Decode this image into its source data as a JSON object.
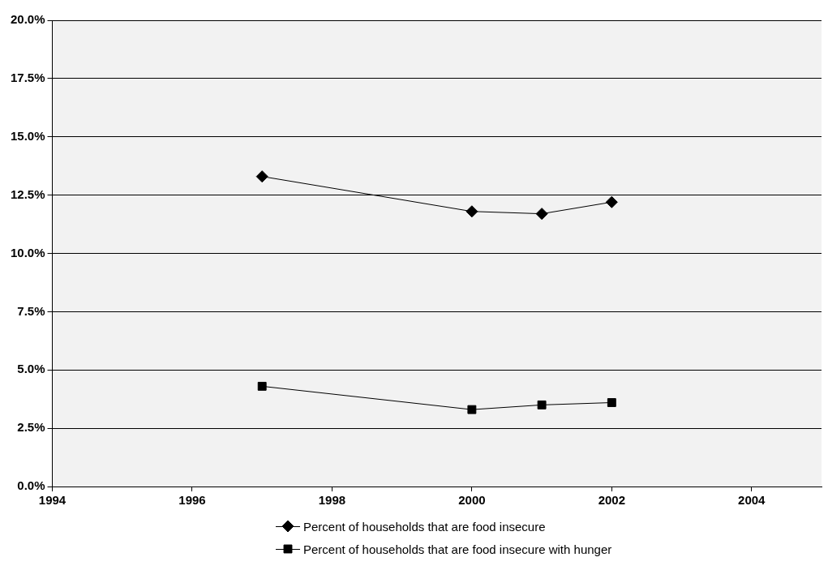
{
  "chart_data": {
    "type": "line",
    "x": [
      1997,
      2000,
      2001,
      2002
    ],
    "xlim": [
      1994,
      2005
    ],
    "xticks": [
      1994,
      1996,
      1998,
      2000,
      2002,
      2004
    ],
    "ylim": [
      0,
      20
    ],
    "yticks": [
      {
        "value": 0,
        "label": "0.0%"
      },
      {
        "value": 2.5,
        "label": "2.5%"
      },
      {
        "value": 5,
        "label": "5.0%"
      },
      {
        "value": 7.5,
        "label": "7.5%"
      },
      {
        "value": 10,
        "label": "10.0%"
      },
      {
        "value": 12.5,
        "label": "12.5%"
      },
      {
        "value": 15,
        "label": "15.0%"
      },
      {
        "value": 17.5,
        "label": "17.5%"
      },
      {
        "value": 20,
        "label": "20.0%"
      }
    ],
    "grid": "y",
    "legend": "bottom",
    "line_style": "solid",
    "series": [
      {
        "name": "Percent of households that are food insecure",
        "color": "#000000",
        "marker": "diamond",
        "values": [
          13.3,
          11.8,
          11.7,
          12.2
        ]
      },
      {
        "name": "Percent of households that are food insecure with hunger",
        "color": "#000000",
        "marker": "square",
        "values": [
          4.3,
          3.3,
          3.5,
          3.6
        ]
      }
    ]
  }
}
